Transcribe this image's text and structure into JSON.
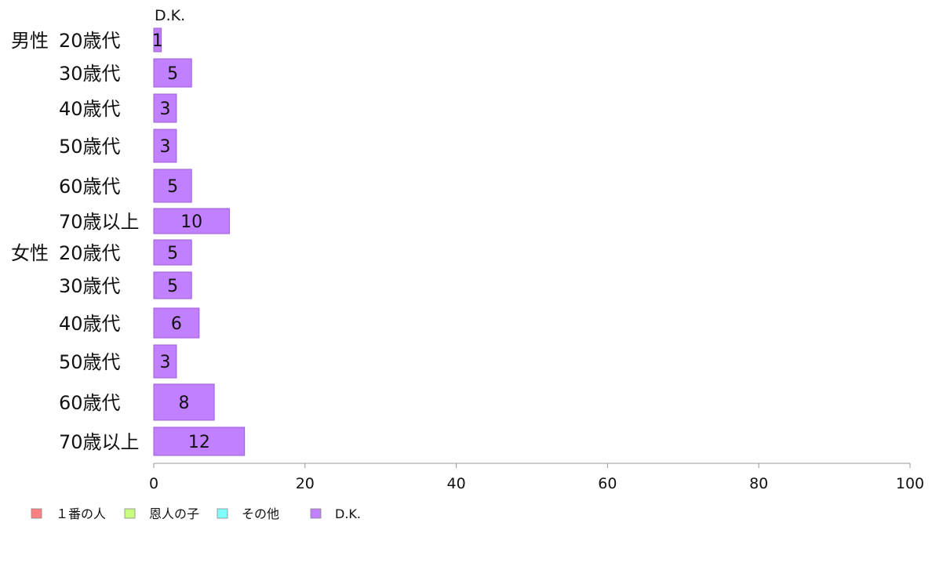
{
  "chart_data": {
    "type": "bar",
    "orientation": "horizontal",
    "series_title": "D.K.",
    "groups": [
      {
        "name": "男性",
        "rows": [
          {
            "label": "20歳代",
            "value": 1
          },
          {
            "label": "30歳代",
            "value": 5
          },
          {
            "label": "40歳代",
            "value": 3
          },
          {
            "label": "50歳代",
            "value": 3
          },
          {
            "label": "60歳代",
            "value": 5
          },
          {
            "label": "70歳以上",
            "value": 10
          }
        ]
      },
      {
        "name": "女性",
        "rows": [
          {
            "label": "20歳代",
            "value": 5
          },
          {
            "label": "30歳代",
            "value": 5
          },
          {
            "label": "40歳代",
            "value": 6
          },
          {
            "label": "50歳代",
            "value": 3
          },
          {
            "label": "60歳代",
            "value": 8
          },
          {
            "label": "70歳以上",
            "value": 12
          }
        ]
      }
    ],
    "xlim": [
      0,
      100
    ],
    "xticks": [
      0,
      20,
      40,
      60,
      80,
      100
    ],
    "grid": false,
    "legend": {
      "placement": "bottom-left",
      "items": [
        {
          "label": "１番の人",
          "color": "#ff8080"
        },
        {
          "label": "恩人の子",
          "color": "#c8ff80"
        },
        {
          "label": "その他",
          "color": "#80ffff"
        },
        {
          "label": "D.K.",
          "color": "#c080ff"
        }
      ]
    },
    "bar_color": "#c080ff",
    "bar_stroke": "#9a5fd6"
  }
}
